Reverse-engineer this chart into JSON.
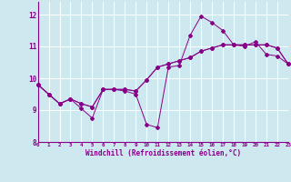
{
  "xlabel": "Windchill (Refroidissement éolien,°C)",
  "bg_color": "#cde8ee",
  "line_color": "#880088",
  "hours": [
    0,
    1,
    2,
    3,
    4,
    5,
    6,
    7,
    8,
    9,
    10,
    11,
    12,
    13,
    14,
    15,
    16,
    17,
    18,
    19,
    20,
    21,
    22,
    23
  ],
  "series1": [
    9.8,
    9.5,
    9.2,
    9.35,
    9.05,
    8.75,
    9.65,
    9.65,
    9.6,
    9.5,
    8.55,
    8.45,
    10.35,
    10.4,
    11.35,
    11.95,
    11.75,
    11.5,
    11.05,
    11.0,
    11.15,
    10.75,
    10.7,
    10.45
  ],
  "series2": [
    9.8,
    9.5,
    9.2,
    9.35,
    9.2,
    9.1,
    9.65,
    9.65,
    9.65,
    9.6,
    9.95,
    10.35,
    10.45,
    10.55,
    10.65,
    10.85,
    10.95,
    11.05,
    11.05,
    11.05,
    11.05,
    11.05,
    10.95,
    10.45
  ],
  "series3": [
    9.8,
    9.5,
    9.2,
    9.35,
    9.2,
    9.1,
    9.65,
    9.65,
    9.65,
    9.6,
    9.95,
    10.35,
    10.45,
    10.55,
    10.65,
    10.85,
    10.95,
    11.05,
    11.05,
    11.05,
    11.05,
    11.05,
    10.95,
    10.45
  ],
  "ylim": [
    8.0,
    12.4
  ],
  "xlim": [
    0,
    23
  ],
  "yticks": [
    8,
    9,
    10,
    11,
    12
  ],
  "xticks": [
    0,
    1,
    2,
    3,
    4,
    5,
    6,
    7,
    8,
    9,
    10,
    11,
    12,
    13,
    14,
    15,
    16,
    17,
    18,
    19,
    20,
    21,
    22,
    23
  ]
}
